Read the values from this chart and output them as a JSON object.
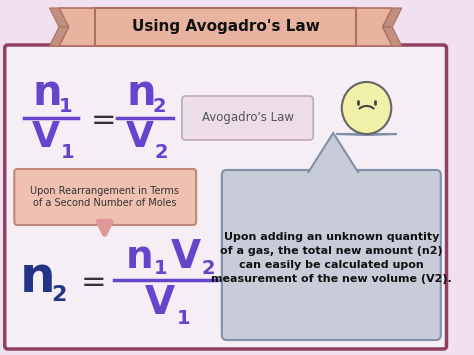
{
  "bg_color": "#f0e0f0",
  "title": "Using Avogadro's Law",
  "title_banner_color": "#e8b4a0",
  "title_banner_edge": "#b07060",
  "main_box_color": "#f5eef5",
  "main_box_edge": "#904060",
  "formula_color": "#6644cc",
  "formula_color2": "#223388",
  "text_color": "#333333",
  "rearrange_box_color": "#f0c0b0",
  "rearrange_box_edge": "#c08878",
  "speech_box_color": "#c8ccd8",
  "speech_box_edge": "#8090a8",
  "avogadro_banner_color": "#ecdde8",
  "avogadro_banner_edge": "#c0a8b8",
  "arrow_color": "#e09898",
  "face_color": "#f0f0a8",
  "face_edge": "#666666",
  "body_color": "#c8ccd8",
  "speech_text": "Upon adding an unknown quantity\nof a gas, the total new amount (n2)\ncan easily be calculated upon\nmeasurement of the new volume (V2).",
  "rearrange_text": "Upon Rearrangement in Terms\nof a Second Number of Moles",
  "avogadro_label": "Avogadro's Law"
}
